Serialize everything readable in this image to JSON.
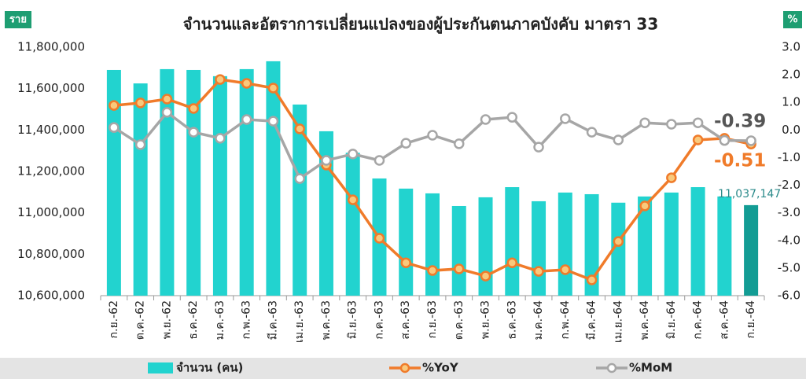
{
  "chart_data": {
    "type": "combo",
    "title": "จำนวนและอัตราการเปลี่ยนแปลงของผู้ประกันตนภาคบังคับ  มาตรา 33",
    "y_label": "ราย",
    "y2_label": "%",
    "categories": [
      "ก.ย.-62",
      "ต.ค.-62",
      "พ.ย.-62",
      "ธ.ค.-62",
      "ม.ค.-63",
      "ก.พ.-63",
      "มี.ค.-63",
      "เม.ย.-63",
      "พ.ค.-63",
      "มิ.ย.-63",
      "ก.ค.-63",
      "ส.ค.-63",
      "ก.ย.-63",
      "ต.ค.-63",
      "พ.ย.-63",
      "ธ.ค.-63",
      "ม.ค.-64",
      "ก.พ.-64",
      "มี.ค.-64",
      "เม.ย.-64",
      "พ.ค.-64",
      "มิ.ย.-64",
      "ก.ค.-64",
      "ส.ค.-64",
      "ก.ย.-64"
    ],
    "series": [
      {
        "name": "จำนวน (คน)",
        "type": "bar",
        "color": "#22d3cf",
        "colors": [
          "#22d3cf",
          "#22d3cf",
          "#22d3cf",
          "#22d3cf",
          "#22d3cf",
          "#22d3cf",
          "#22d3cf",
          "#22d3cf",
          "#22d3cf",
          "#22d3cf",
          "#22d3cf",
          "#22d3cf",
          "#22d3cf",
          "#22d3cf",
          "#22d3cf",
          "#22d3cf",
          "#22d3cf",
          "#22d3cf",
          "#22d3cf",
          "#22d3cf",
          "#22d3cf",
          "#22d3cf",
          "#22d3cf",
          "#22d3cf",
          "#129c94"
        ],
        "values": [
          11690000,
          11625000,
          11694000,
          11690000,
          11660000,
          11694000,
          11732000,
          11523000,
          11394000,
          11290000,
          11166000,
          11117000,
          11094000,
          11033000,
          11075000,
          11124000,
          11056000,
          11098000,
          11090000,
          11049000,
          11079000,
          11098000,
          11124000,
          11079000,
          11037147
        ],
        "value_labels": [
          null,
          null,
          null,
          null,
          null,
          null,
          null,
          null,
          null,
          null,
          null,
          null,
          null,
          null,
          null,
          null,
          null,
          null,
          null,
          null,
          null,
          null,
          null,
          null,
          "11,037,147"
        ]
      },
      {
        "name": "%YoY",
        "type": "line",
        "axis": "y2",
        "color": "#f07b2a",
        "marker_fill": "#f9c97c",
        "values": [
          0.89,
          0.98,
          1.12,
          0.78,
          1.83,
          1.69,
          1.52,
          0.04,
          -1.27,
          -2.53,
          -3.92,
          -4.81,
          -5.09,
          -5.03,
          -5.29,
          -4.81,
          -5.12,
          -5.06,
          -5.43,
          -4.04,
          -2.75,
          -1.73,
          -0.36,
          -0.3,
          -0.51
        ],
        "value_labels": [
          null,
          null,
          null,
          null,
          null,
          null,
          null,
          null,
          null,
          null,
          null,
          null,
          null,
          null,
          null,
          null,
          null,
          null,
          null,
          null,
          null,
          null,
          null,
          null,
          "-0.51"
        ]
      },
      {
        "name": "%MoM",
        "type": "line",
        "axis": "y2",
        "color": "#a6a6a6",
        "marker_fill": "#ffffff",
        "values": [
          0.09,
          -0.53,
          0.64,
          -0.08,
          -0.3,
          0.38,
          0.32,
          -1.76,
          -1.1,
          -0.87,
          -1.1,
          -0.48,
          -0.19,
          -0.5,
          0.38,
          0.46,
          -0.62,
          0.41,
          -0.08,
          -0.36,
          0.26,
          0.21,
          0.26,
          -0.38,
          -0.39
        ],
        "value_labels": [
          null,
          null,
          null,
          null,
          null,
          null,
          null,
          null,
          null,
          null,
          null,
          null,
          null,
          null,
          null,
          null,
          null,
          null,
          null,
          null,
          null,
          null,
          null,
          null,
          "-0.39"
        ]
      }
    ],
    "ylim": [
      10600000,
      11800000
    ],
    "yticks": [
      {
        "value": 10600000,
        "label": "10,600,000"
      },
      {
        "value": 10800000,
        "label": "10,800,000"
      },
      {
        "value": 11000000,
        "label": "11,000,000"
      },
      {
        "value": 11200000,
        "label": "11,200,000"
      },
      {
        "value": 11400000,
        "label": "11,400,000"
      },
      {
        "value": 11600000,
        "label": "11,600,000"
      },
      {
        "value": 11800000,
        "label": "11,800,000"
      }
    ],
    "y2lim": [
      -6,
      3
    ],
    "y2ticks": [
      {
        "value": -6,
        "label": "-6.0"
      },
      {
        "value": -5,
        "label": "-5.0"
      },
      {
        "value": -4,
        "label": "-4.0"
      },
      {
        "value": -3,
        "label": "-3.0"
      },
      {
        "value": -2,
        "label": "-2.0"
      },
      {
        "value": -1,
        "label": "-1.0"
      },
      {
        "value": 0,
        "label": "0.0"
      },
      {
        "value": 1,
        "label": "1.0"
      },
      {
        "value": 2,
        "label": "2.0"
      },
      {
        "value": 3,
        "label": "3.0"
      }
    ],
    "grid": false,
    "legend": "bottom"
  }
}
